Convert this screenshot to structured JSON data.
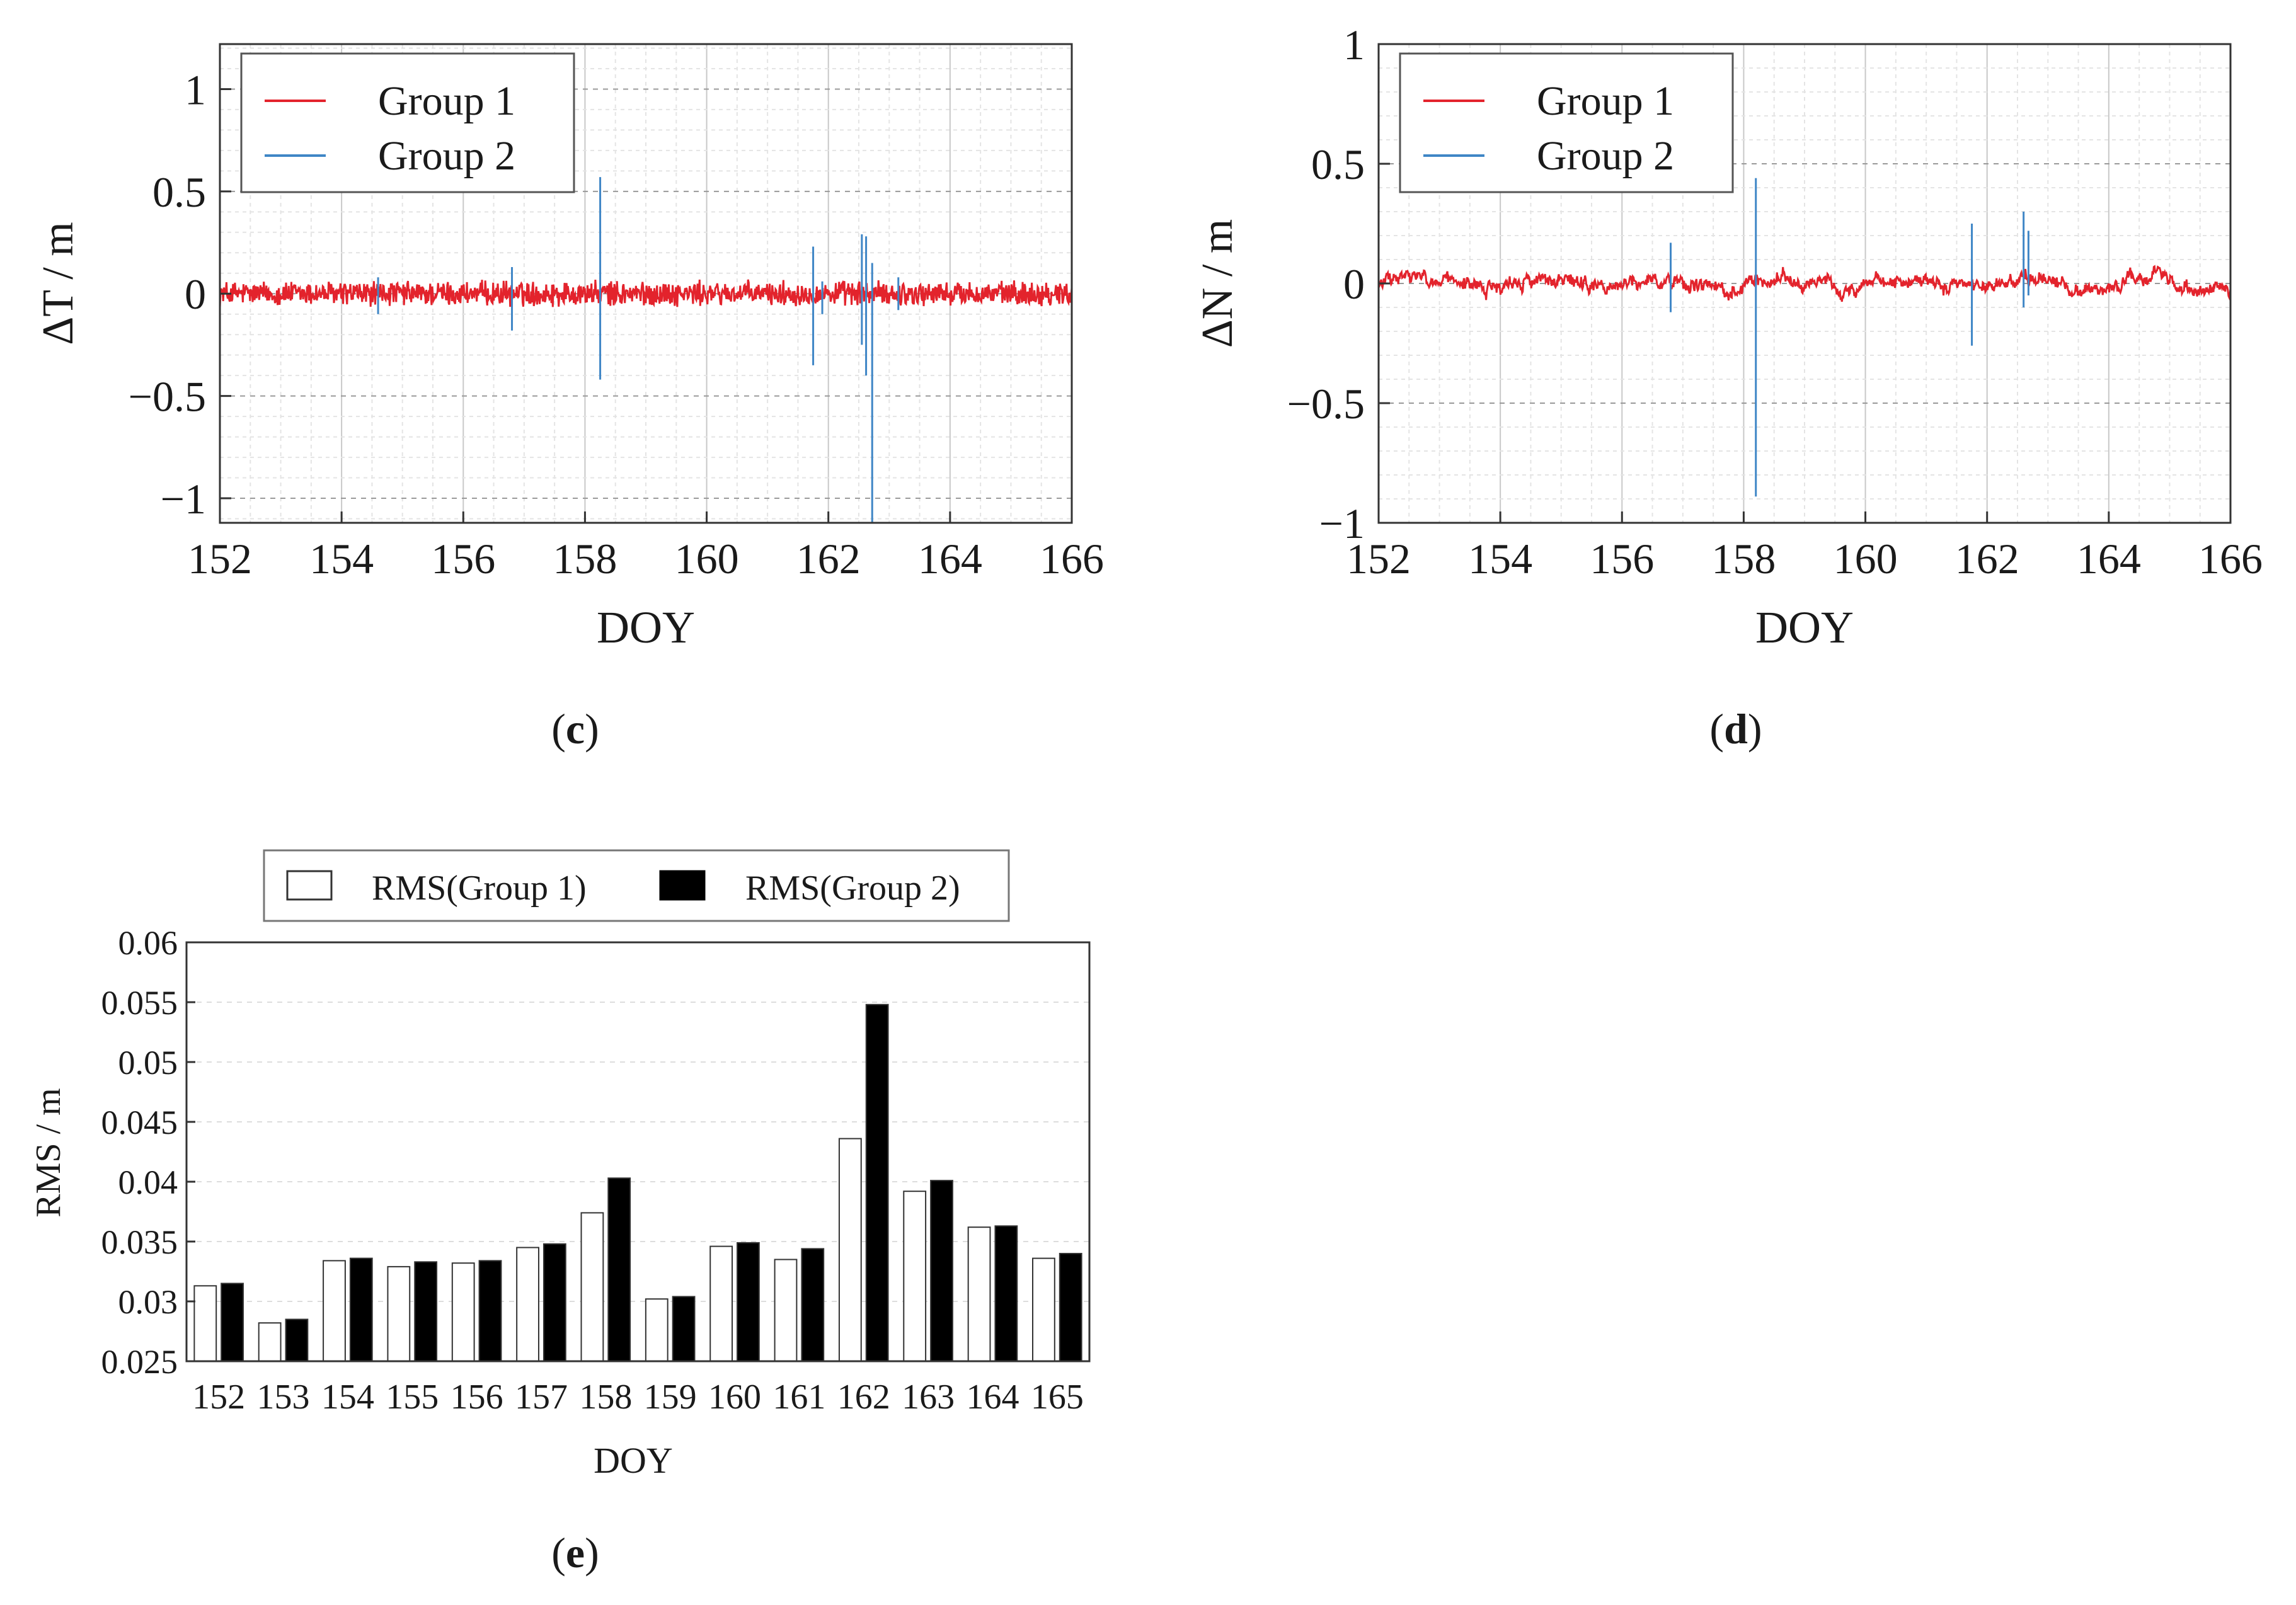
{
  "panels": {
    "c": {
      "label_open": "(",
      "letter": "c",
      "label_close": ")"
    },
    "d": {
      "label_open": "(",
      "letter": "d",
      "label_close": ")"
    },
    "e": {
      "label_open": "(",
      "letter": "e",
      "label_close": ")"
    }
  },
  "colors": {
    "group1": "#e3232c",
    "group2": "#3f86c6",
    "bar_g1": "#ffffff",
    "bar_g2": "#000000"
  },
  "chart_data": [
    {
      "id": "c",
      "type": "line",
      "xlabel": "DOY",
      "ylabel": "ΔT / m",
      "xlim": [
        152,
        166
      ],
      "ylim": [
        -1.12,
        1.22
      ],
      "xticks": [
        "152",
        "154",
        "156",
        "158",
        "160",
        "162",
        "164",
        "166"
      ],
      "yticks": [
        "1",
        "0.5",
        "0",
        "−0.5",
        "−1"
      ],
      "ytick_values": [
        1,
        0.5,
        0,
        -0.5,
        -1
      ],
      "grid": true,
      "legend_position": "top-left",
      "series": [
        {
          "name": "Group 1",
          "description_noise_amplitude": 0.05
        },
        {
          "name": "Group 2",
          "spikes": [
            [
              154.6,
              -0.1,
              0.08
            ],
            [
              156.8,
              -0.18,
              0.13
            ],
            [
              158.25,
              -0.42,
              0.57
            ],
            [
              161.75,
              -0.35,
              0.23
            ],
            [
              161.9,
              -0.1,
              0.06
            ],
            [
              162.55,
              -0.25,
              0.29
            ],
            [
              162.62,
              -0.4,
              0.28
            ],
            [
              162.72,
              -1.12,
              0.15
            ],
            [
              163.15,
              -0.08,
              0.08
            ]
          ]
        }
      ]
    },
    {
      "id": "d",
      "type": "line",
      "xlabel": "DOY",
      "ylabel": "ΔN / m",
      "xlim": [
        152,
        166
      ],
      "ylim": [
        -1,
        1
      ],
      "xticks": [
        "152",
        "154",
        "156",
        "158",
        "160",
        "162",
        "164",
        "166"
      ],
      "yticks": [
        "1",
        "0.5",
        "0",
        "−0.5",
        "−1"
      ],
      "ytick_values": [
        1,
        0.5,
        0,
        -0.5,
        -1
      ],
      "grid": true,
      "legend_position": "top-left",
      "series": [
        {
          "name": "Group 1",
          "description_noise_amplitude": 0.035
        },
        {
          "name": "Group 2",
          "spikes": [
            [
              156.8,
              -0.12,
              0.17
            ],
            [
              158.2,
              -0.89,
              0.44
            ],
            [
              161.75,
              -0.26,
              0.25
            ],
            [
              162.6,
              -0.1,
              0.3
            ],
            [
              162.68,
              -0.05,
              0.22
            ]
          ]
        }
      ]
    },
    {
      "id": "e",
      "type": "bar",
      "xlabel": "DOY",
      "ylabel": "RMS / m",
      "categories": [
        "152",
        "153",
        "154",
        "155",
        "156",
        "157",
        "158",
        "159",
        "160",
        "161",
        "162",
        "163",
        "164",
        "165"
      ],
      "ylim": [
        0.025,
        0.06
      ],
      "yticks": [
        "0.06",
        "0.055",
        "0.05",
        "0.045",
        "0.04",
        "0.035",
        "0.03",
        "0.025"
      ],
      "ytick_values": [
        0.06,
        0.055,
        0.05,
        0.045,
        0.04,
        0.035,
        0.03,
        0.025
      ],
      "legend_position": "top",
      "series": [
        {
          "name": "RMS(Group 1)",
          "values": [
            0.0313,
            0.0282,
            0.0334,
            0.0329,
            0.0332,
            0.0345,
            0.0374,
            0.0302,
            0.0346,
            0.0335,
            0.0436,
            0.0392,
            0.0362,
            0.0336
          ]
        },
        {
          "name": "RMS(Group 2)",
          "values": [
            0.0315,
            0.0285,
            0.0336,
            0.0333,
            0.0334,
            0.0348,
            0.0403,
            0.0304,
            0.0349,
            0.0344,
            0.0548,
            0.0401,
            0.0363,
            0.034
          ]
        }
      ]
    }
  ]
}
